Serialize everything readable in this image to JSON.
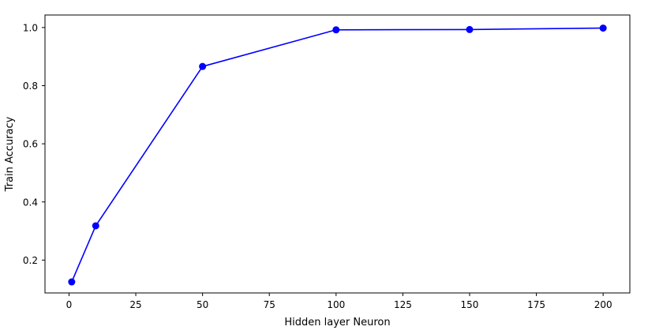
{
  "chart_data": {
    "type": "line",
    "title": "",
    "xlabel": "Hidden layer Neuron",
    "ylabel": "Train Accuracy",
    "x": [
      1,
      10,
      50,
      100,
      150,
      200
    ],
    "series": [
      {
        "values": [
          0.125,
          0.318,
          0.866,
          0.992,
          0.993,
          0.998
        ],
        "color": "#0000ff",
        "marker": "circle"
      }
    ],
    "xlim": [
      -9,
      210
    ],
    "ylim": [
      0.087,
      1.043
    ],
    "xticks": [
      0,
      25,
      50,
      75,
      100,
      125,
      150,
      175,
      200
    ],
    "yticks": [
      0.2,
      0.4,
      0.6,
      0.8,
      1.0
    ],
    "xtick_labels": [
      "0",
      "25",
      "50",
      "75",
      "100",
      "125",
      "150",
      "175",
      "200"
    ],
    "ytick_labels": [
      "0.2",
      "0.4",
      "0.6",
      "0.8",
      "1.0"
    ],
    "grid": false,
    "legend": "none"
  }
}
